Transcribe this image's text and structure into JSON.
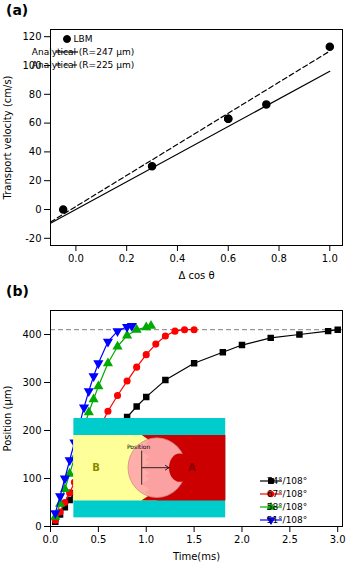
{
  "chart_data": [
    {
      "type": "line",
      "title": "(a)",
      "xlabel": "Δ cos θ",
      "ylabel": "Transport velocity (cm/s)",
      "xlim": [
        -0.1,
        1.05
      ],
      "ylim": [
        -25,
        125
      ],
      "xticks": [
        {
          "value": 0.0,
          "label": "0.0"
        },
        0.2,
        0.4,
        0.6,
        0.8,
        {
          "value": 1.0,
          "label": "1.0"
        }
      ],
      "yticks": [
        -20,
        0,
        20,
        40,
        60,
        80,
        100,
        120
      ],
      "legend": "upper left",
      "series": [
        {
          "name": "LBM",
          "type": "scatter",
          "color": "#000000",
          "marker": "circle",
          "x": [
            -0.05,
            0.3,
            0.6,
            0.6,
            0.75,
            1.0
          ],
          "values": [
            0,
            30,
            63,
            63,
            73,
            113
          ]
        },
        {
          "name": "Analytical (R=247 μm)",
          "type": "line",
          "color": "#000000",
          "line_style": "solid",
          "x": [
            -0.1,
            1.0
          ],
          "values": [
            -9.5,
            96
          ]
        },
        {
          "name": "Analytical (R=225 μm)",
          "type": "line",
          "color": "#000000",
          "line_style": "dashed",
          "x": [
            -0.1,
            1.0
          ],
          "values": [
            -8.7,
            110
          ]
        }
      ]
    },
    {
      "type": "line",
      "title": "(b)",
      "xlabel": "Time(ms)",
      "ylabel": "Position (μm)",
      "xlim": [
        0,
        3.05
      ],
      "ylim": [
        0,
        450
      ],
      "xticks": [
        {
          "value": 0.0,
          "label": "0.0"
        },
        0.5,
        {
          "value": 1.0,
          "label": "1.0"
        },
        1.5,
        {
          "value": 2.0,
          "label": "2.0"
        },
        2.5,
        {
          "value": 3.0,
          "label": "3.0"
        }
      ],
      "yticks": [
        0,
        100,
        200,
        300,
        400
      ],
      "legend": "lower right",
      "hlines": [
        {
          "y": 410,
          "color": "#808080",
          "line_style": "dashed"
        }
      ],
      "series": [
        {
          "name": "74°/108°",
          "type": "line",
          "color": "#000000",
          "marker": "square",
          "line_style": "solid",
          "x": [
            0.05,
            0.1,
            0.15,
            0.2,
            0.25,
            0.3,
            0.35,
            0.4,
            0.45,
            0.5,
            0.6,
            0.7,
            0.8,
            0.9,
            1.0,
            1.2,
            1.5,
            1.8,
            2.0,
            2.3,
            2.6,
            2.9,
            3.0
          ],
          "values": [
            10,
            25,
            40,
            55,
            70,
            87,
            103,
            120,
            135,
            150,
            180,
            207,
            228,
            250,
            270,
            305,
            340,
            363,
            378,
            393,
            400,
            407,
            410
          ]
        },
        {
          "name": "67°/108°",
          "type": "line",
          "color": "#ff0000",
          "marker": "circle",
          "line_style": "solid",
          "x": [
            0.05,
            0.1,
            0.15,
            0.2,
            0.25,
            0.3,
            0.35,
            0.4,
            0.45,
            0.5,
            0.6,
            0.7,
            0.8,
            0.9,
            1.0,
            1.1,
            1.2,
            1.3,
            1.4,
            1.5
          ],
          "values": [
            13,
            30,
            50,
            70,
            92,
            113,
            135,
            158,
            178,
            200,
            240,
            273,
            303,
            332,
            358,
            380,
            397,
            407,
            410,
            410
          ]
        },
        {
          "name": "58°/108°",
          "type": "line",
          "color": "#00aa00",
          "marker": "triangle-up",
          "line_style": "solid",
          "x": [
            0.05,
            0.1,
            0.15,
            0.2,
            0.25,
            0.3,
            0.35,
            0.4,
            0.45,
            0.5,
            0.6,
            0.7,
            0.8,
            0.9,
            1.0,
            1.05
          ],
          "values": [
            20,
            47,
            78,
            110,
            143,
            175,
            207,
            238,
            265,
            292,
            340,
            375,
            398,
            410,
            415,
            418
          ]
        },
        {
          "name": "51°/108°",
          "type": "line",
          "color": "#0000ff",
          "marker": "triangle-down",
          "line_style": "solid",
          "x": [
            0.05,
            0.1,
            0.15,
            0.2,
            0.25,
            0.3,
            0.35,
            0.4,
            0.45,
            0.5,
            0.6,
            0.7,
            0.8,
            0.85
          ],
          "values": [
            28,
            63,
            100,
            138,
            175,
            210,
            248,
            282,
            313,
            340,
            385,
            407,
            416,
            418
          ]
        }
      ],
      "inset": {
        "colors": [
          "#00cccc",
          "#ffff99",
          "#cc0000",
          "#ffaaaa",
          "#cc8888"
        ],
        "annotations": [
          {
            "text": "Position",
            "color": "#000000"
          },
          {
            "text": "B",
            "color": "#888800"
          },
          {
            "text": "A",
            "color": "#880000"
          }
        ]
      }
    }
  ]
}
